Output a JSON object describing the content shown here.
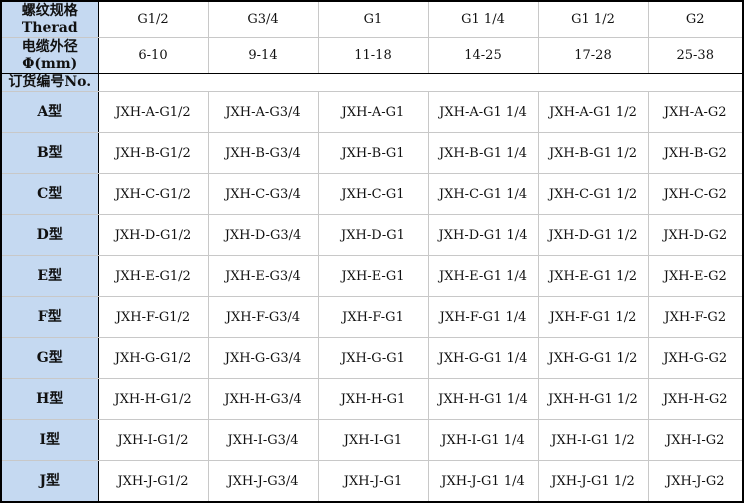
{
  "header": {
    "thread_label": [
      "螺纹规格",
      "Therad"
    ],
    "thread_sizes": [
      "G1/2",
      "G3/4",
      "G1",
      "G1 1/4",
      "G1 1/2",
      "G2"
    ],
    "cable_label": [
      "电缆外径",
      "Φ(mm)"
    ],
    "cable_ranges": [
      "6-10",
      "9-14",
      "11-18",
      "14-25",
      "17-28",
      "25-38"
    ],
    "order_label": "订货编号No."
  },
  "rows": [
    {
      "type": "A型",
      "codes": [
        "JXH-A-G1/2",
        "JXH-A-G3/4",
        "JXH-A-G1",
        "JXH-A-G1 1/4",
        "JXH-A-G1 1/2",
        "JXH-A-G2"
      ]
    },
    {
      "type": "B型",
      "codes": [
        "JXH-B-G1/2",
        "JXH-B-G3/4",
        "JXH-B-G1",
        "JXH-B-G1 1/4",
        "JXH-B-G1 1/2",
        "JXH-B-G2"
      ]
    },
    {
      "type": "C型",
      "codes": [
        "JXH-C-G1/2",
        "JXH-C-G3/4",
        "JXH-C-G1",
        "JXH-C-G1 1/4",
        "JXH-C-G1 1/2",
        "JXH-C-G2"
      ]
    },
    {
      "type": "D型",
      "codes": [
        "JXH-D-G1/2",
        "JXH-D-G3/4",
        "JXH-D-G1",
        "JXH-D-G1 1/4",
        "JXH-D-G1 1/2",
        "JXH-D-G2"
      ]
    },
    {
      "type": "E型",
      "codes": [
        "JXH-E-G1/2",
        "JXH-E-G3/4",
        "JXH-E-G1",
        "JXH-E-G1 1/4",
        "JXH-E-G1 1/2",
        "JXH-E-G2"
      ]
    },
    {
      "type": "F型",
      "codes": [
        "JXH-F-G1/2",
        "JXH-F-G3/4",
        "JXH-F-G1",
        "JXH-F-G1 1/4",
        "JXH-F-G1 1/2",
        "JXH-F-G2"
      ]
    },
    {
      "type": "G型",
      "codes": [
        "JXH-G-G1/2",
        "JXH-G-G3/4",
        "JXH-G-G1",
        "JXH-G-G1 1/4",
        "JXH-G-G1 1/2",
        "JXH-G-G2"
      ]
    },
    {
      "type": "H型",
      "codes": [
        "JXH-H-G1/2",
        "JXH-H-G3/4",
        "JXH-H-G1",
        "JXH-H-G1 1/4",
        "JXH-H-G1 1/2",
        "JXH-H-G2"
      ]
    },
    {
      "type": "I型",
      "codes": [
        "JXH-I-G1/2",
        "JXH-I-G3/4",
        "JXH-I-G1",
        "JXH-I-G1 1/4",
        "JXH-I-G1 1/2",
        "JXH-I-G2"
      ]
    },
    {
      "type": "J型",
      "codes": [
        "JXH-J-G1/2",
        "JXH-J-G3/4",
        "JXH-J-G1",
        "JXH-J-G1 1/4",
        "JXH-J-G1 1/2",
        "JXH-J-G2"
      ]
    }
  ],
  "colors": {
    "header_bg": "#c5d9f1",
    "grid": "#c8c8c8",
    "border": "#000000"
  }
}
